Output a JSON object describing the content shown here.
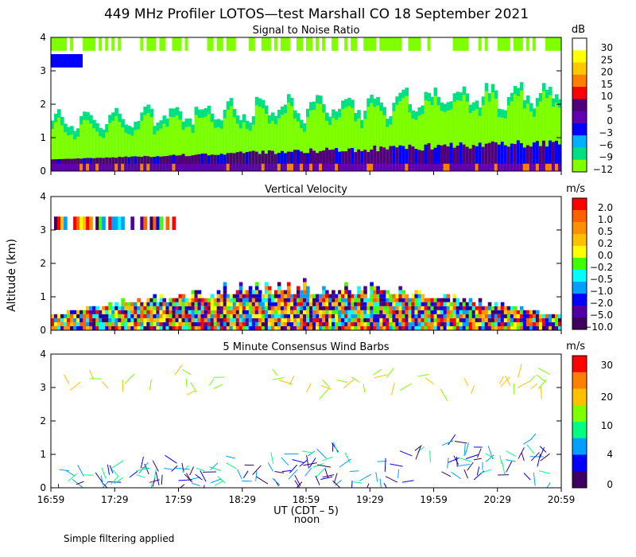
{
  "title": "449 MHz Profiler LOTOS—test Marshall CO 18 September 2021",
  "y_axis_label": "Altitude (km)",
  "x_axis_label": "UT  (CDT – 5)",
  "noon_label": "noon",
  "footnote": "Simple filtering applied",
  "chart_data": [
    {
      "type": "heatmap",
      "title": "Signal to Noise Ratio",
      "unit": "dB",
      "x_ticks": [
        "16:59",
        "17:29",
        "17:59",
        "18:29",
        "18:59",
        "19:29",
        "19:59",
        "20:29",
        "20:59"
      ],
      "y_ticks": [
        "0",
        "1",
        "2",
        "3",
        "4"
      ],
      "ylim": [
        0,
        4
      ],
      "colorbar": {
        "labels": [
          "30",
          "25",
          "20",
          "15",
          "10",
          "5",
          "0",
          "−3",
          "−6",
          "−9",
          "−12"
        ],
        "colors": [
          "#ffffff",
          "#ffff00",
          "#ffc800",
          "#ff8000",
          "#ff0000",
          "#500078",
          "#6000b0",
          "#0000ff",
          "#00b0ff",
          "#00e080",
          "#80ff00"
        ]
      }
    },
    {
      "type": "heatmap",
      "title": "Vertical Velocity",
      "unit": "m/s",
      "x_ticks": [
        "16:59",
        "17:29",
        "17:59",
        "18:29",
        "18:59",
        "19:29",
        "19:59",
        "20:29",
        "20:59"
      ],
      "y_ticks": [
        "0",
        "1",
        "2",
        "3",
        "4"
      ],
      "ylim": [
        0,
        4
      ],
      "colorbar": {
        "labels": [
          "2.0",
          "1.0",
          "0.5",
          "0.2",
          "0.0",
          "−0.2",
          "−0.5",
          "−1.0",
          "−2.0",
          "−5.0",
          "−10.0"
        ],
        "colors": [
          "#ff0000",
          "#ff6000",
          "#ff9000",
          "#ffc000",
          "#ffff00",
          "#40ff00",
          "#00ffff",
          "#00a0ff",
          "#0000ff",
          "#5000a0",
          "#400060"
        ]
      }
    },
    {
      "type": "scatter",
      "title": "5 Minute Consensus Wind Barbs",
      "unit": "m/s",
      "x_ticks": [
        "16:59",
        "17:29",
        "17:59",
        "18:29",
        "18:59",
        "19:29",
        "19:59",
        "20:29",
        "20:59"
      ],
      "y_ticks": [
        "0",
        "1",
        "2",
        "3",
        "4"
      ],
      "ylim": [
        0,
        4
      ],
      "colorbar": {
        "labels": [
          "30",
          "20",
          "10",
          "4",
          "0"
        ],
        "colors": [
          "#ff0000",
          "#ff8000",
          "#ffc000",
          "#80ff00",
          "#00ff80",
          "#00a0ff",
          "#0000ff",
          "#400060"
        ]
      }
    }
  ]
}
